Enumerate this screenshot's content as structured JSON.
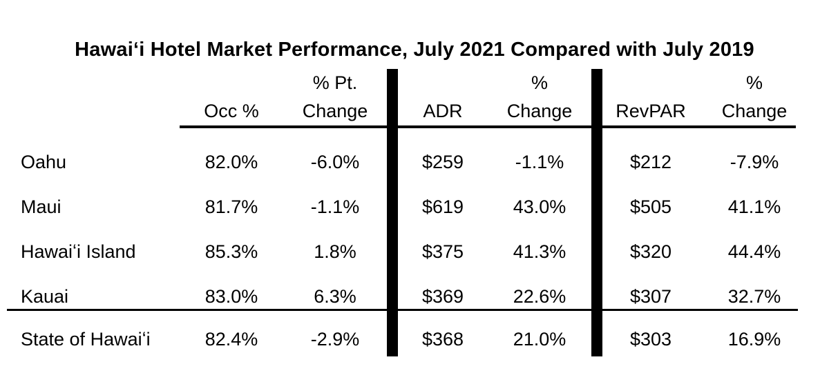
{
  "page": {
    "background": "#ffffff"
  },
  "chart_data": {
    "type": "table",
    "title": "Hawaiʻi Hotel Market Performance, July 2021 Compared with July 2019",
    "header": {
      "top": [
        "",
        "",
        "% Pt.",
        "",
        "%",
        "",
        "%"
      ],
      "bottom": [
        "",
        "Occ %",
        "Change",
        "ADR",
        "Change",
        "RevPAR",
        "Change"
      ]
    },
    "column_groups": [
      "Occupancy",
      "ADR",
      "RevPAR"
    ],
    "rows": [
      {
        "label": "Oahu",
        "values": [
          "82.0%",
          "-6.0%",
          "$259",
          "-1.1%",
          "$212",
          "-7.9%"
        ]
      },
      {
        "label": "Maui",
        "values": [
          "81.7%",
          "-1.1%",
          "$619",
          "43.0%",
          "$505",
          "41.1%"
        ]
      },
      {
        "label": "Hawaiʻi Island",
        "values": [
          "85.3%",
          "1.8%",
          "$375",
          "41.3%",
          "$320",
          "44.4%"
        ]
      },
      {
        "label": "Kauai",
        "values": [
          "83.0%",
          "6.3%",
          "$369",
          "22.6%",
          "$307",
          "32.7%"
        ]
      }
    ],
    "total_row": {
      "label": "State of Hawaiʻi",
      "values": [
        "82.4%",
        "-2.9%",
        "$368",
        "21.0%",
        "$303",
        "16.9%"
      ]
    },
    "colors": {
      "text": "#000000",
      "background": "#ffffff",
      "divider": "#000000"
    },
    "layout": {
      "legend": "none",
      "grid": "none",
      "group_dividers": "thick-vertical-black-bars"
    }
  }
}
